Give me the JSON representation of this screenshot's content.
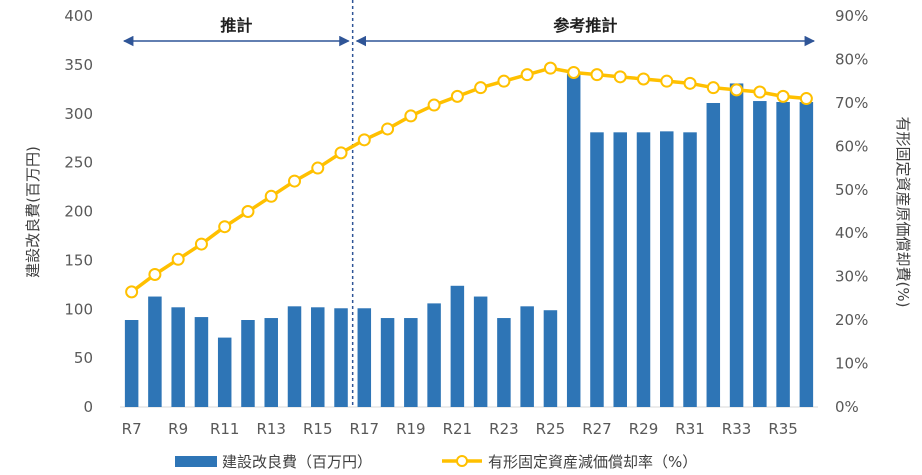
{
  "chart_data": {
    "type": "bar",
    "categories": [
      "R7",
      "R8",
      "R9",
      "R10",
      "R11",
      "R12",
      "R13",
      "R14",
      "R15",
      "R16",
      "R17",
      "R18",
      "R19",
      "R20",
      "R21",
      "R22",
      "R23",
      "R24",
      "R25",
      "R26",
      "R27",
      "R28",
      "R29",
      "R30",
      "R31",
      "R32",
      "R33",
      "R34",
      "R35",
      "R36"
    ],
    "x_tick_labels": [
      "R7",
      "R9",
      "R11",
      "R13",
      "R15",
      "R17",
      "R19",
      "R21",
      "R23",
      "R25",
      "R27",
      "R29",
      "R31",
      "R33",
      "R35"
    ],
    "series": [
      {
        "name": "建設改良費（百万円）",
        "type": "bar",
        "axis": "left",
        "color": "#2E75B6",
        "values": [
          89,
          113,
          102,
          92,
          71,
          89,
          91,
          103,
          102,
          101,
          101,
          91,
          91,
          106,
          124,
          113,
          91,
          103,
          99,
          341,
          281,
          281,
          281,
          282,
          281,
          311,
          331,
          313,
          312,
          312
        ]
      },
      {
        "name": "有形固定資産減価償却率（%）",
        "type": "line",
        "axis": "right",
        "color": "#FFC000",
        "marker_fill": "#FFFFFF",
        "values": [
          26.5,
          30.5,
          34,
          37.5,
          41.5,
          45,
          48.5,
          52,
          55,
          58.5,
          61.5,
          64,
          67,
          69.5,
          71.5,
          73.5,
          75,
          76.5,
          78,
          77,
          76.5,
          76,
          75.5,
          75,
          74.5,
          73.5,
          73,
          72.5,
          71.5,
          71
        ]
      }
    ],
    "y_left": {
      "label": "建設改良費(百万円)",
      "min": 0,
      "max": 400,
      "ticks": [
        "0",
        "50",
        "100",
        "150",
        "200",
        "250",
        "300",
        "350",
        "400"
      ]
    },
    "y_right": {
      "label": "有形固定資産原価償却費(%)",
      "min": 0,
      "max": 90,
      "ticks": [
        "0%",
        "10%",
        "20%",
        "30%",
        "40%",
        "50%",
        "60%",
        "70%",
        "80%",
        "90%"
      ]
    },
    "phases": [
      {
        "label": "推計",
        "from": "R7",
        "to": "R16"
      },
      {
        "label": "参考推計",
        "from": "R17",
        "to": "R36"
      }
    ],
    "divider_after": "R16",
    "arrow_color": "#2F5597",
    "grid": false,
    "legend_position": "bottom",
    "legend": [
      {
        "label": "建設改良費（百万円）",
        "marker": "bar"
      },
      {
        "label": "有形固定資産減価償却率（%）",
        "marker": "line"
      }
    ]
  }
}
